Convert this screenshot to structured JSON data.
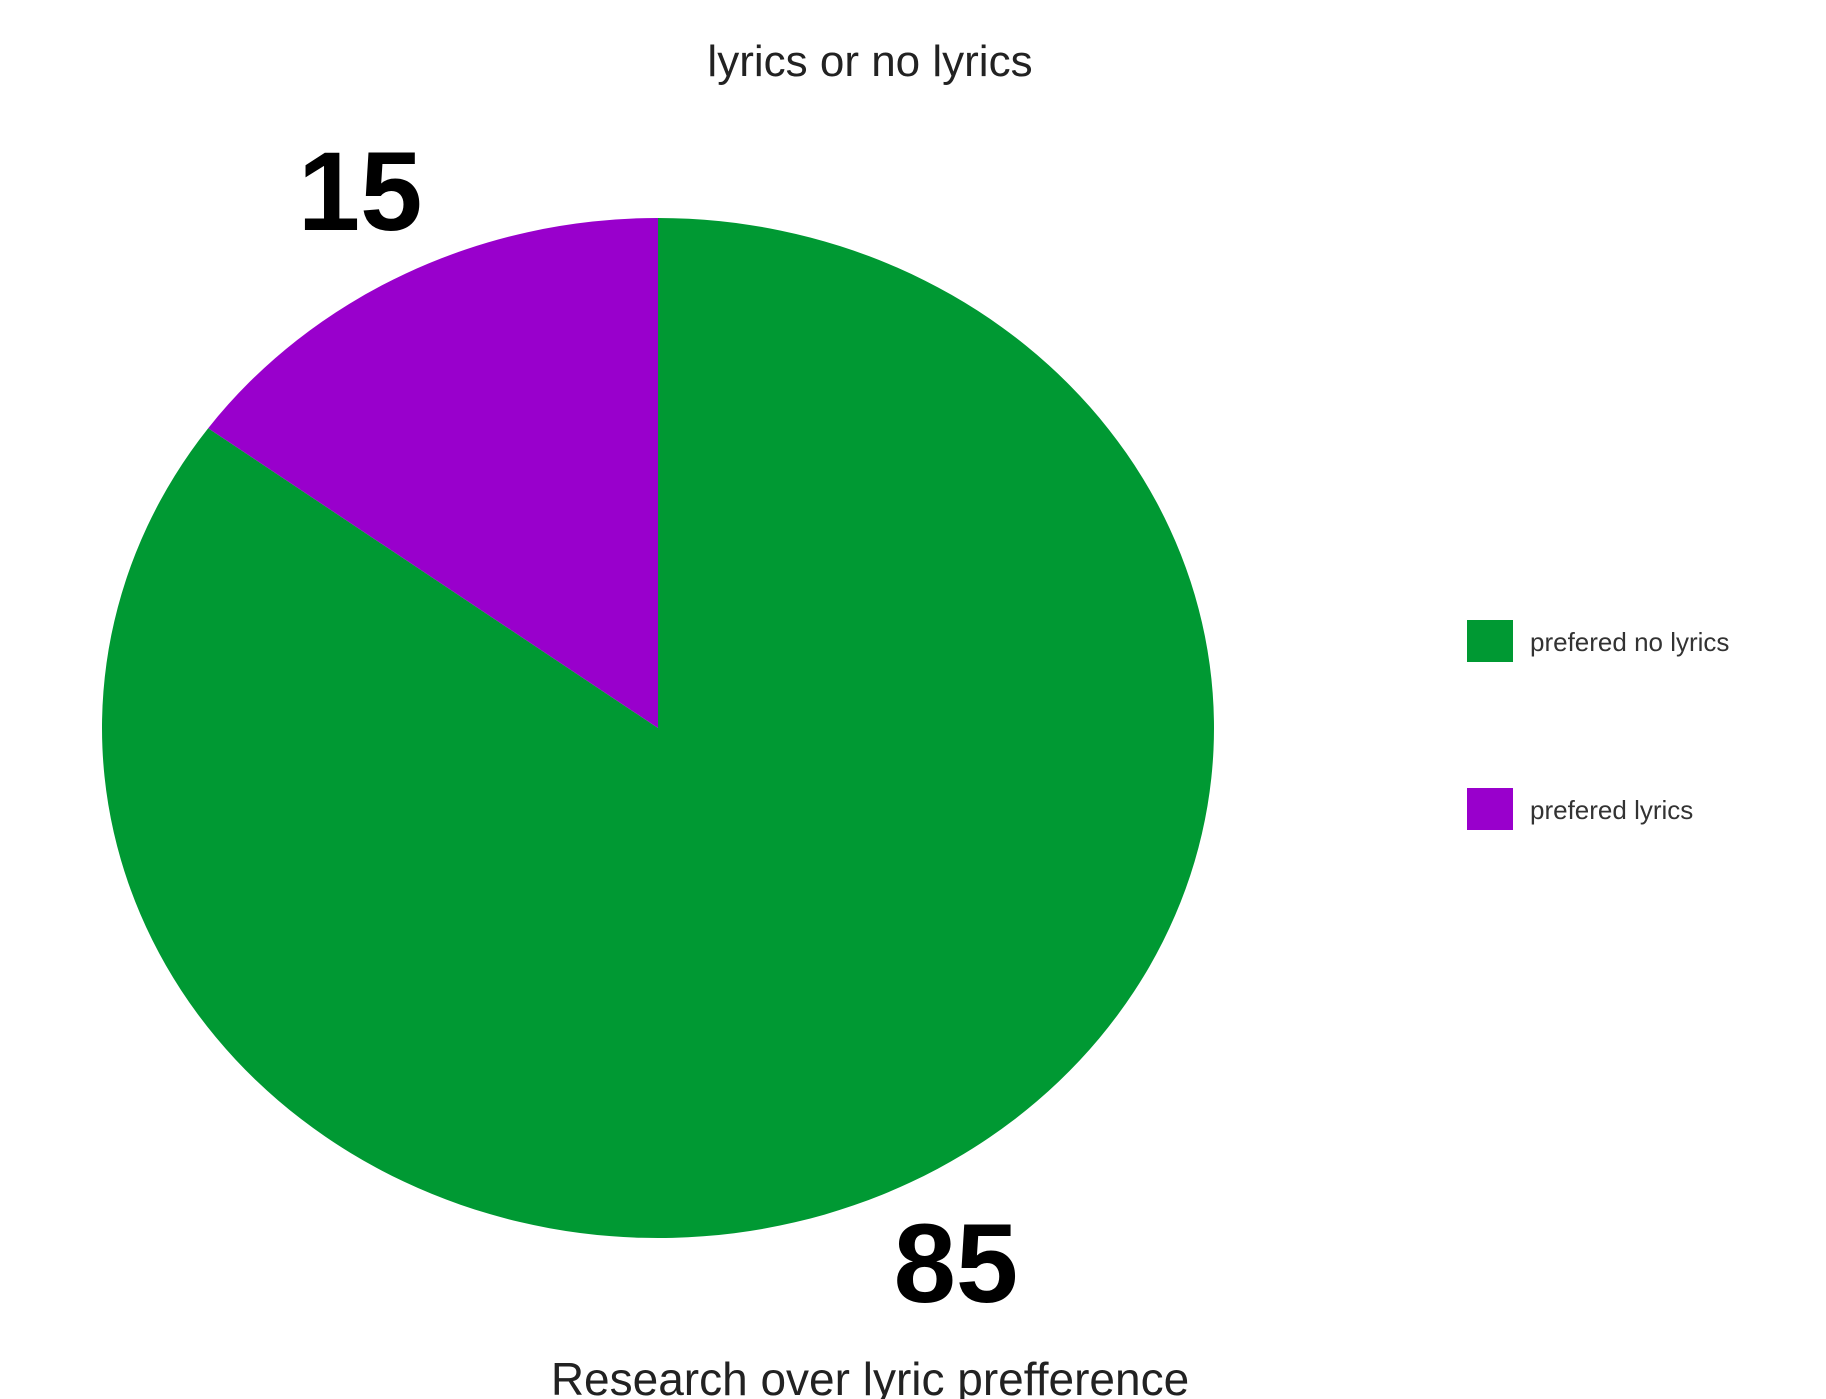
{
  "chart_data": {
    "type": "pie",
    "title": "lyrics or no lyrics",
    "xlabel": "Research over lyric prefference",
    "categories": [
      "prefered no lyrics",
      "prefered lyrics"
    ],
    "values": [
      85,
      15
    ],
    "colors": [
      "#009933",
      "#9900cc"
    ],
    "data_labels": [
      "85",
      "15"
    ],
    "legend_position": "right"
  }
}
